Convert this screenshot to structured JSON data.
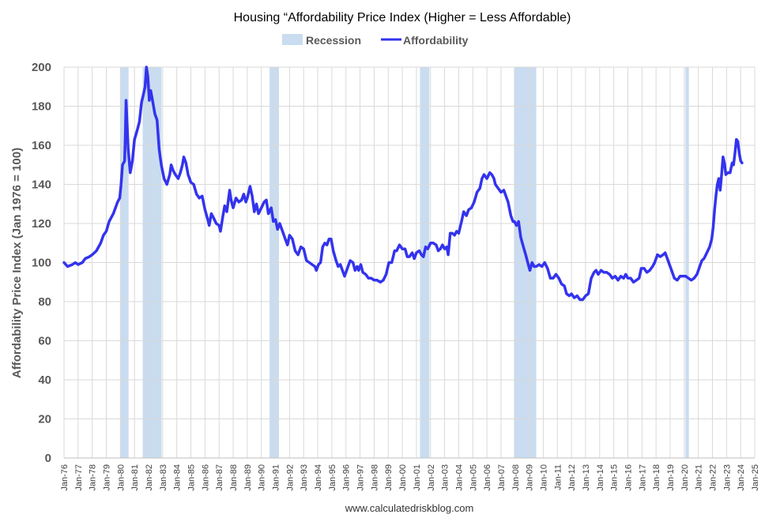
{
  "chart_data": {
    "type": "line",
    "title": "Housing “Affordability Price Index (Higher = Less Affordable)",
    "ylabel": "Affordability Price Index (Jan 1976 = 100)",
    "xlabel": "",
    "source": "www.calculatedriskblog.com",
    "ylim": [
      0,
      200
    ],
    "yticks": [
      0,
      20,
      40,
      60,
      80,
      100,
      120,
      140,
      160,
      180,
      200
    ],
    "xlim": [
      1976,
      2025
    ],
    "xticks": [
      "Jan-76",
      "Jan-77",
      "Jan-78",
      "Jan-79",
      "Jan-80",
      "Jan-81",
      "Jan-82",
      "Jan-83",
      "Jan-84",
      "Jan-85",
      "Jan-86",
      "Jan-87",
      "Jan-88",
      "Jan-89",
      "Jan-90",
      "Jan-91",
      "Jan-92",
      "Jan-93",
      "Jan-94",
      "Jan-95",
      "Jan-96",
      "Jan-97",
      "Jan-98",
      "Jan-99",
      "Jan-00",
      "Jan-01",
      "Jan-02",
      "Jan-03",
      "Jan-04",
      "Jan-05",
      "Jan-06",
      "Jan-07",
      "Jan-08",
      "Jan-09",
      "Jan-10",
      "Jan-11",
      "Jan-12",
      "Jan-13",
      "Jan-14",
      "Jan-15",
      "Jan-16",
      "Jan-17",
      "Jan-18",
      "Jan-19",
      "Jan-20",
      "Jan-21",
      "Jan-22",
      "Jan-23",
      "Jan-24",
      "Jan-25"
    ],
    "grid": true,
    "legend": {
      "placement": "top-center",
      "entries": [
        {
          "name": "Recession",
          "color": "#c9dcf0"
        },
        {
          "name": "Affordability",
          "color": "#3333ee"
        }
      ]
    },
    "recessions": [
      [
        1980.0,
        1980.58
      ],
      [
        1981.58,
        1982.92
      ],
      [
        1990.58,
        1991.25
      ],
      [
        2001.25,
        2001.92
      ],
      [
        2007.92,
        2009.5
      ],
      [
        2020.08,
        2020.33
      ]
    ],
    "series": [
      {
        "name": "Affordability",
        "color": "#3333ee",
        "points": [
          [
            1976.0,
            100
          ],
          [
            1976.25,
            98
          ],
          [
            1976.6,
            99
          ],
          [
            1976.8,
            100
          ],
          [
            1977.0,
            99
          ],
          [
            1977.3,
            100
          ],
          [
            1977.5,
            102
          ],
          [
            1977.8,
            103
          ],
          [
            1978.0,
            104
          ],
          [
            1978.3,
            106
          ],
          [
            1978.6,
            110
          ],
          [
            1978.8,
            114
          ],
          [
            1979.0,
            116
          ],
          [
            1979.2,
            121
          ],
          [
            1979.5,
            125
          ],
          [
            1979.8,
            131
          ],
          [
            1979.95,
            133
          ],
          [
            1980.05,
            140
          ],
          [
            1980.15,
            150
          ],
          [
            1980.3,
            152
          ],
          [
            1980.35,
            165
          ],
          [
            1980.4,
            183
          ],
          [
            1980.45,
            175
          ],
          [
            1980.55,
            158
          ],
          [
            1980.7,
            146
          ],
          [
            1980.85,
            152
          ],
          [
            1981.0,
            163
          ],
          [
            1981.2,
            168
          ],
          [
            1981.35,
            172
          ],
          [
            1981.5,
            182
          ],
          [
            1981.6,
            185
          ],
          [
            1981.75,
            190
          ],
          [
            1981.85,
            200
          ],
          [
            1981.95,
            195
          ],
          [
            1982.05,
            183
          ],
          [
            1982.15,
            188
          ],
          [
            1982.3,
            182
          ],
          [
            1982.45,
            176
          ],
          [
            1982.6,
            173
          ],
          [
            1982.75,
            158
          ],
          [
            1982.9,
            150
          ],
          [
            1983.1,
            143
          ],
          [
            1983.3,
            140
          ],
          [
            1983.5,
            145
          ],
          [
            1983.6,
            150
          ],
          [
            1983.75,
            147
          ],
          [
            1983.9,
            145
          ],
          [
            1984.1,
            143
          ],
          [
            1984.25,
            146
          ],
          [
            1984.4,
            150
          ],
          [
            1984.5,
            154
          ],
          [
            1984.65,
            151
          ],
          [
            1984.8,
            145
          ],
          [
            1985.0,
            141
          ],
          [
            1985.2,
            140
          ],
          [
            1985.4,
            135
          ],
          [
            1985.6,
            133
          ],
          [
            1985.8,
            134
          ],
          [
            1986.0,
            127
          ],
          [
            1986.2,
            122
          ],
          [
            1986.3,
            119
          ],
          [
            1986.45,
            125
          ],
          [
            1986.6,
            123
          ],
          [
            1986.8,
            120
          ],
          [
            1987.0,
            119
          ],
          [
            1987.1,
            116
          ],
          [
            1987.25,
            123
          ],
          [
            1987.4,
            129
          ],
          [
            1987.55,
            126
          ],
          [
            1987.75,
            137
          ],
          [
            1987.85,
            132
          ],
          [
            1988.0,
            128
          ],
          [
            1988.2,
            133
          ],
          [
            1988.4,
            131
          ],
          [
            1988.6,
            132
          ],
          [
            1988.75,
            135
          ],
          [
            1988.9,
            131
          ],
          [
            1989.0,
            133
          ],
          [
            1989.2,
            139
          ],
          [
            1989.35,
            134
          ],
          [
            1989.5,
            126
          ],
          [
            1989.65,
            130
          ],
          [
            1989.8,
            125
          ],
          [
            1990.0,
            128
          ],
          [
            1990.2,
            131
          ],
          [
            1990.35,
            132
          ],
          [
            1990.5,
            125
          ],
          [
            1990.7,
            128
          ],
          [
            1990.85,
            121
          ],
          [
            1991.0,
            122
          ],
          [
            1991.15,
            117
          ],
          [
            1991.3,
            120
          ],
          [
            1991.5,
            116
          ],
          [
            1991.7,
            112
          ],
          [
            1991.85,
            109
          ],
          [
            1992.0,
            114
          ],
          [
            1992.2,
            112
          ],
          [
            1992.4,
            106
          ],
          [
            1992.6,
            104
          ],
          [
            1992.8,
            108
          ],
          [
            1993.0,
            107
          ],
          [
            1993.2,
            101
          ],
          [
            1993.4,
            100
          ],
          [
            1993.6,
            99
          ],
          [
            1993.8,
            98
          ],
          [
            1993.9,
            96
          ],
          [
            1994.05,
            99
          ],
          [
            1994.2,
            100
          ],
          [
            1994.35,
            108
          ],
          [
            1994.5,
            110
          ],
          [
            1994.65,
            109
          ],
          [
            1994.8,
            112
          ],
          [
            1994.95,
            112
          ],
          [
            1995.1,
            106
          ],
          [
            1995.3,
            101
          ],
          [
            1995.45,
            98
          ],
          [
            1995.6,
            99
          ],
          [
            1995.8,
            95
          ],
          [
            1995.9,
            93
          ],
          [
            1996.1,
            97
          ],
          [
            1996.3,
            101
          ],
          [
            1996.5,
            100
          ],
          [
            1996.65,
            96
          ],
          [
            1996.8,
            98
          ],
          [
            1996.9,
            96
          ],
          [
            1997.05,
            99
          ],
          [
            1997.2,
            95
          ],
          [
            1997.4,
            94
          ],
          [
            1997.6,
            92
          ],
          [
            1997.8,
            92
          ],
          [
            1998.0,
            91
          ],
          [
            1998.2,
            91
          ],
          [
            1998.45,
            90
          ],
          [
            1998.65,
            91
          ],
          [
            1998.85,
            94
          ],
          [
            1999.05,
            100
          ],
          [
            1999.25,
            100
          ],
          [
            1999.45,
            106
          ],
          [
            1999.6,
            106
          ],
          [
            1999.8,
            109
          ],
          [
            2000.0,
            107
          ],
          [
            2000.2,
            107
          ],
          [
            2000.35,
            103
          ],
          [
            2000.5,
            103
          ],
          [
            2000.7,
            105
          ],
          [
            2000.85,
            102
          ],
          [
            2001.0,
            105
          ],
          [
            2001.2,
            106
          ],
          [
            2001.35,
            104
          ],
          [
            2001.5,
            103
          ],
          [
            2001.65,
            108
          ],
          [
            2001.8,
            107
          ],
          [
            2002.0,
            110
          ],
          [
            2002.2,
            110
          ],
          [
            2002.4,
            109
          ],
          [
            2002.55,
            106
          ],
          [
            2002.7,
            107
          ],
          [
            2002.85,
            109
          ],
          [
            2003.0,
            107
          ],
          [
            2003.15,
            108
          ],
          [
            2003.25,
            104
          ],
          [
            2003.4,
            115
          ],
          [
            2003.55,
            115
          ],
          [
            2003.7,
            114
          ],
          [
            2003.85,
            116
          ],
          [
            2004.0,
            115
          ],
          [
            2004.2,
            121
          ],
          [
            2004.35,
            126
          ],
          [
            2004.55,
            124
          ],
          [
            2004.7,
            127
          ],
          [
            2004.9,
            128
          ],
          [
            2005.1,
            131
          ],
          [
            2005.3,
            136
          ],
          [
            2005.5,
            138
          ],
          [
            2005.65,
            143
          ],
          [
            2005.8,
            145
          ],
          [
            2006.0,
            143
          ],
          [
            2006.2,
            146
          ],
          [
            2006.35,
            145
          ],
          [
            2006.5,
            143
          ],
          [
            2006.6,
            140
          ],
          [
            2006.8,
            138
          ],
          [
            2007.0,
            136
          ],
          [
            2007.2,
            137
          ],
          [
            2007.35,
            134
          ],
          [
            2007.5,
            131
          ],
          [
            2007.7,
            124
          ],
          [
            2007.85,
            121
          ],
          [
            2007.95,
            121
          ],
          [
            2008.1,
            119
          ],
          [
            2008.25,
            121
          ],
          [
            2008.4,
            113
          ],
          [
            2008.55,
            109
          ],
          [
            2008.75,
            104
          ],
          [
            2008.9,
            100
          ],
          [
            2009.05,
            96
          ],
          [
            2009.2,
            100
          ],
          [
            2009.35,
            98
          ],
          [
            2009.5,
            98
          ],
          [
            2009.7,
            99
          ],
          [
            2009.9,
            98
          ],
          [
            2010.1,
            100
          ],
          [
            2010.3,
            97
          ],
          [
            2010.5,
            92
          ],
          [
            2010.7,
            92
          ],
          [
            2010.9,
            94
          ],
          [
            2011.1,
            92
          ],
          [
            2011.3,
            89
          ],
          [
            2011.5,
            88
          ],
          [
            2011.65,
            84
          ],
          [
            2011.85,
            83
          ],
          [
            2012.0,
            84
          ],
          [
            2012.2,
            82
          ],
          [
            2012.4,
            83
          ],
          [
            2012.6,
            81
          ],
          [
            2012.8,
            81
          ],
          [
            2013.0,
            83
          ],
          [
            2013.2,
            84
          ],
          [
            2013.4,
            92
          ],
          [
            2013.6,
            95
          ],
          [
            2013.75,
            96
          ],
          [
            2013.9,
            94
          ],
          [
            2014.1,
            96
          ],
          [
            2014.3,
            95
          ],
          [
            2014.5,
            95
          ],
          [
            2014.7,
            94
          ],
          [
            2014.9,
            92
          ],
          [
            2015.1,
            93
          ],
          [
            2015.3,
            91
          ],
          [
            2015.5,
            93
          ],
          [
            2015.7,
            92
          ],
          [
            2015.85,
            94
          ],
          [
            2016.0,
            92
          ],
          [
            2016.2,
            92
          ],
          [
            2016.4,
            90
          ],
          [
            2016.6,
            91
          ],
          [
            2016.8,
            92
          ],
          [
            2016.95,
            97
          ],
          [
            2017.15,
            97
          ],
          [
            2017.35,
            95
          ],
          [
            2017.55,
            96
          ],
          [
            2017.75,
            98
          ],
          [
            2017.9,
            100
          ],
          [
            2018.1,
            104
          ],
          [
            2018.3,
            103
          ],
          [
            2018.5,
            104
          ],
          [
            2018.65,
            105
          ],
          [
            2018.8,
            102
          ],
          [
            2018.95,
            99
          ],
          [
            2019.1,
            96
          ],
          [
            2019.3,
            92
          ],
          [
            2019.5,
            91
          ],
          [
            2019.7,
            93
          ],
          [
            2019.9,
            93
          ],
          [
            2020.1,
            93
          ],
          [
            2020.3,
            92
          ],
          [
            2020.5,
            91
          ],
          [
            2020.7,
            92
          ],
          [
            2020.9,
            94
          ],
          [
            2021.1,
            98
          ],
          [
            2021.25,
            101
          ],
          [
            2021.4,
            102
          ],
          [
            2021.6,
            105
          ],
          [
            2021.8,
            108
          ],
          [
            2021.95,
            112
          ],
          [
            2022.05,
            118
          ],
          [
            2022.15,
            127
          ],
          [
            2022.25,
            134
          ],
          [
            2022.35,
            140
          ],
          [
            2022.45,
            143
          ],
          [
            2022.55,
            137
          ],
          [
            2022.65,
            145
          ],
          [
            2022.75,
            154
          ],
          [
            2022.85,
            151
          ],
          [
            2022.95,
            145
          ],
          [
            2023.1,
            146
          ],
          [
            2023.25,
            146
          ],
          [
            2023.4,
            151
          ],
          [
            2023.5,
            150
          ],
          [
            2023.6,
            156
          ],
          [
            2023.7,
            163
          ],
          [
            2023.8,
            162
          ],
          [
            2023.9,
            156
          ],
          [
            2024.0,
            152
          ],
          [
            2024.1,
            151
          ]
        ]
      }
    ]
  }
}
